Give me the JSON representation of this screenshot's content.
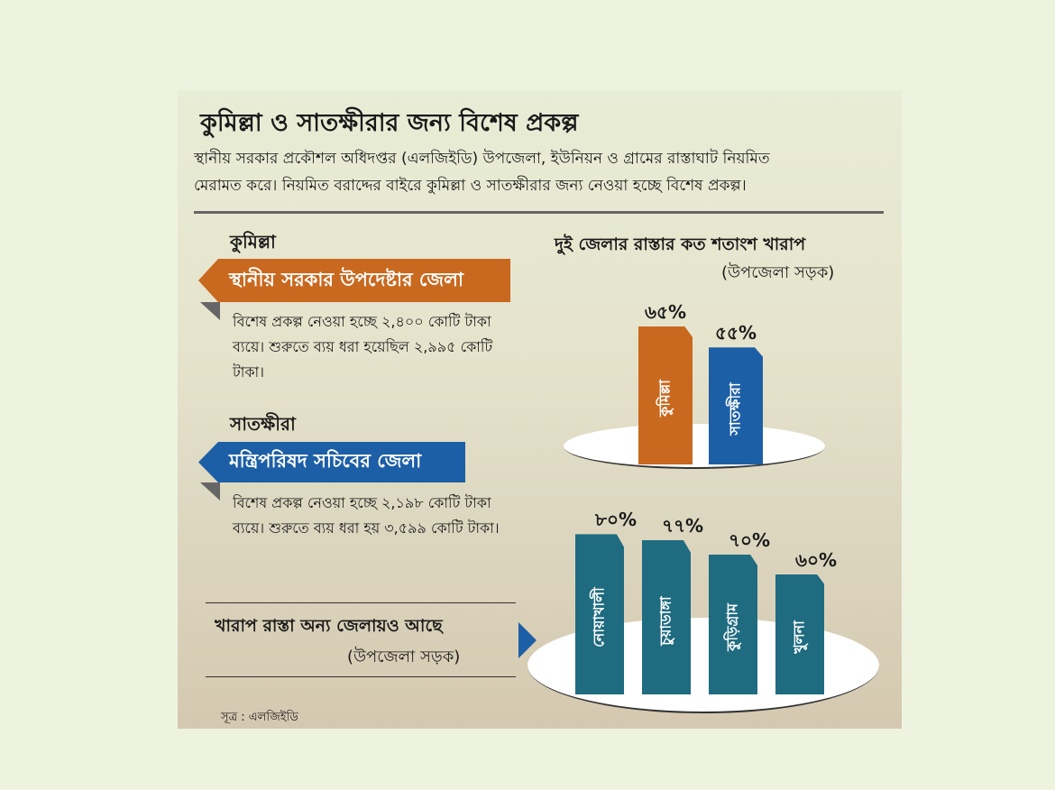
{
  "title": "কুমিল্লা ও সাতক্ষীরার জন্য বিশেষ প্রকল্প",
  "intro": [
    "স্থানীয় সরকার প্রকৌশল অধিদপ্তর (এলজিইডি) উপজেলা, ইউনিয়ন ও গ্রামের রাস্তাঘাট নিয়মিত",
    "মেরামত করে। নিয়মিত বরাদ্দের বাইরে কুমিল্লা ও সাতক্ষীরার জন্য নেওয়া হচ্ছে বিশেষ প্রকল্প।"
  ],
  "comilla": {
    "name": "কুমিল্লা",
    "banner": "স্থানীয় সরকার উপদেষ্টার জেলা",
    "text": "বিশেষ প্রকল্প নেওয়া হচ্ছে ২,৪০০ কোটি টাকা ব্যয়ে। শুরুতে ব্যয় ধরা হয়েছিল ২,৯৯৫ কোটি টাকা।"
  },
  "satkhira": {
    "name": "সাতক্ষীরা",
    "banner": "মন্ত্রিপরিষদ সচিবের জেলা",
    "text": "বিশেষ প্রকল্প নেওয়া হচ্ছে ২,১৯৮ কোটি টাকা ব্যয়ে। শুরুতে ব্যয় ধরা হয় ৩,৫৯৯ কোটি টাকা।"
  },
  "others": {
    "title": "খারাপ রাস্তা অন্য জেলায়ও আছে",
    "subtitle": "(উপজেলা সড়ক)"
  },
  "source": "সূত্র : এলজিইডি",
  "colors": {
    "orange": "#c8691f",
    "blue": "#1d5fa6",
    "teal": "#1f6b80"
  },
  "chart_data": [
    {
      "type": "bar",
      "title": "দুই জেলার রাস্তার কত শতাংশ খারাপ",
      "subtitle": "(উপজেলা সড়ক)",
      "categories": [
        "কুমিল্লা",
        "সাতক্ষীরা"
      ],
      "values": [
        65,
        55
      ],
      "labels": [
        "৬৫%",
        "৫৫%"
      ],
      "colors": [
        "#c8691f",
        "#1d5fa6"
      ],
      "unit": "%"
    },
    {
      "type": "bar",
      "title": "খারাপ রাস্তা অন্য জেলায়ও আছে",
      "categories": [
        "নোয়াখালী",
        "চুয়াডাঙ্গা",
        "কুড়িগ্রাম",
        "খুলনা"
      ],
      "values": [
        80,
        77,
        70,
        60
      ],
      "labels": [
        "৮০%",
        "৭৭%",
        "৭০%",
        "৬০%"
      ],
      "colors": [
        "#1f6b80",
        "#1f6b80",
        "#1f6b80",
        "#1f6b80"
      ],
      "unit": "%"
    }
  ]
}
